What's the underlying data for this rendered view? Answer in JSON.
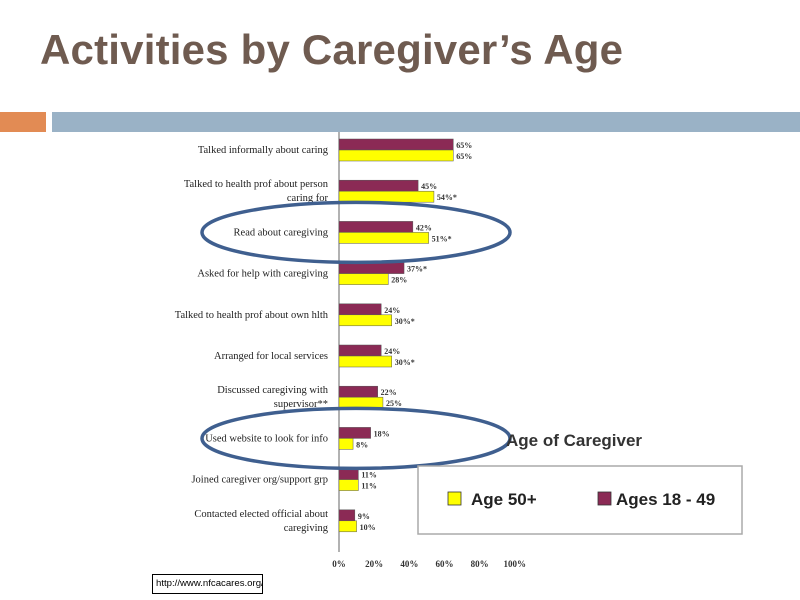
{
  "slide": {
    "title": "Activities by Caregiver’s Age",
    "source": "http://www.nfcacares.org/pdfs/AARPSurveyFinal.pdf"
  },
  "colors": {
    "title": "#6f5b50",
    "accent_orange": "#e28b54",
    "accent_blue": "#9ab2c6",
    "series_50_plus": "#ffff00",
    "series_18_49": "#8b2a55",
    "highlight_ellipse": "#3f5f8f"
  },
  "chart_data": {
    "type": "bar",
    "orientation": "horizontal",
    "categories": [
      [
        "Talked informally about caring"
      ],
      [
        "Talked to health prof about person",
        "caring for"
      ],
      [
        "Read about caregiving"
      ],
      [
        "Asked for help with caregiving"
      ],
      [
        "Talked to health prof about own hlth"
      ],
      [
        "Arranged for local services"
      ],
      [
        "Discussed caregiving with",
        "supervisor**"
      ],
      [
        "Used website to look for info"
      ],
      [
        "Joined caregiver org/support grp"
      ],
      [
        "Contacted elected official about",
        "caregiving"
      ]
    ],
    "series": [
      {
        "name": "Ages 18 - 49",
        "values": [
          65,
          45,
          42,
          37,
          24,
          24,
          22,
          18,
          11,
          9
        ],
        "labels": [
          "65%",
          "45%",
          "42%",
          "37%*",
          "24%",
          "24%",
          "22%",
          "18%",
          "11%",
          "9%"
        ]
      },
      {
        "name": "Age 50+",
        "values": [
          65,
          54,
          51,
          28,
          30,
          30,
          25,
          8,
          11,
          10
        ],
        "labels": [
          "65%",
          "54%*",
          "51%*",
          "28%",
          "30%*",
          "30%*",
          "25%",
          "8%",
          "11%",
          "10%"
        ]
      }
    ],
    "x_ticks": [
      "0%",
      "20%",
      "40%",
      "60%",
      "80%",
      "100%"
    ],
    "xlim": [
      0,
      100
    ],
    "legend": {
      "title": "Age of Caregiver",
      "entries": [
        "Age 50+",
        "Ages 18 - 49"
      ],
      "placement": "bottom-right"
    },
    "highlighted_categories": [
      "Read about caregiving",
      "Used website to look for info"
    ]
  }
}
